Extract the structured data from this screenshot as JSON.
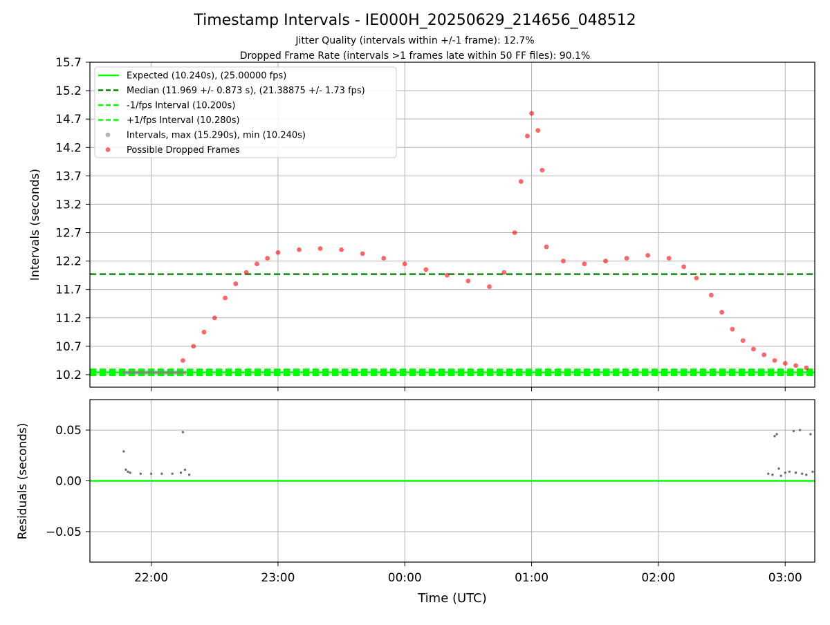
{
  "chart_data": {
    "type": "scatter",
    "title": "Timestamp Intervals - IE000H_20250629_214656_048512",
    "subtitle_1": "Jitter Quality (intervals within +/-1 frame): 12.7%",
    "subtitle_2": "Dropped Frame Rate (intervals >1 frames late within 50 FF files): 90.1%",
    "xlabel": "Time (UTC)",
    "x_range": [
      "21:31",
      "03:14"
    ],
    "x_ticks": [
      "22:00",
      "23:00",
      "00:00",
      "01:00",
      "02:00",
      "03:00"
    ],
    "grid": true,
    "legend_placement": "top-left",
    "top_panel": {
      "ylabel": "Intervals (seconds)",
      "ylim": [
        9.98,
        15.7
      ],
      "y_ticks": [
        "10.2",
        "10.7",
        "11.2",
        "11.7",
        "12.2",
        "12.7",
        "13.2",
        "13.7",
        "14.2",
        "14.7",
        "15.2",
        "15.7"
      ],
      "legend": [
        {
          "label": "Expected (10.240s), (25.00000 fps)",
          "style": "solid",
          "color": "#00ff00"
        },
        {
          "label": "Median (11.969 +/- 0.873 s), (21.38875 +/- 1.73 fps)",
          "style": "dashed",
          "color": "#008000"
        },
        {
          "label": "-1/fps Interval (10.200s)",
          "style": "dashed",
          "color": "#00ff00"
        },
        {
          "label": "+1/fps Interval (10.280s)",
          "style": "dashed",
          "color": "#00ff00"
        },
        {
          "label": "Intervals, max (15.290s), min (10.240s)",
          "style": "dot",
          "color": "#808080"
        },
        {
          "label": "Possible Dropped Frames",
          "style": "dot",
          "color": "#ff0000"
        }
      ],
      "expected": 10.24,
      "median": 11.969,
      "minus_one_fps": 10.2,
      "plus_one_fps": 10.28,
      "dropped_frames_trend": [
        {
          "t": "22:15",
          "v": 10.45
        },
        {
          "t": "22:20",
          "v": 10.7
        },
        {
          "t": "22:25",
          "v": 10.95
        },
        {
          "t": "22:30",
          "v": 11.2
        },
        {
          "t": "22:35",
          "v": 11.55
        },
        {
          "t": "22:40",
          "v": 11.8
        },
        {
          "t": "22:45",
          "v": 12.0
        },
        {
          "t": "22:50",
          "v": 12.15
        },
        {
          "t": "22:55",
          "v": 12.25
        },
        {
          "t": "23:00",
          "v": 12.35
        },
        {
          "t": "23:10",
          "v": 12.4
        },
        {
          "t": "23:20",
          "v": 12.42
        },
        {
          "t": "23:30",
          "v": 12.4
        },
        {
          "t": "23:40",
          "v": 12.33
        },
        {
          "t": "23:50",
          "v": 12.25
        },
        {
          "t": "00:00",
          "v": 12.15
        },
        {
          "t": "00:10",
          "v": 12.05
        },
        {
          "t": "00:20",
          "v": 11.95
        },
        {
          "t": "00:30",
          "v": 11.85
        },
        {
          "t": "00:40",
          "v": 11.75
        },
        {
          "t": "00:47",
          "v": 12.0
        },
        {
          "t": "00:52",
          "v": 12.7
        },
        {
          "t": "00:55",
          "v": 13.6
        },
        {
          "t": "00:58",
          "v": 14.4
        },
        {
          "t": "01:00",
          "v": 14.8
        },
        {
          "t": "01:03",
          "v": 14.5
        },
        {
          "t": "01:05",
          "v": 13.8
        },
        {
          "t": "01:07",
          "v": 12.45
        },
        {
          "t": "01:15",
          "v": 12.2
        },
        {
          "t": "01:25",
          "v": 12.15
        },
        {
          "t": "01:35",
          "v": 12.2
        },
        {
          "t": "01:45",
          "v": 12.25
        },
        {
          "t": "01:55",
          "v": 12.3
        },
        {
          "t": "02:05",
          "v": 12.25
        },
        {
          "t": "02:12",
          "v": 12.1
        },
        {
          "t": "02:18",
          "v": 11.9
        },
        {
          "t": "02:25",
          "v": 11.6
        },
        {
          "t": "02:30",
          "v": 11.3
        },
        {
          "t": "02:35",
          "v": 11.0
        },
        {
          "t": "02:40",
          "v": 10.8
        },
        {
          "t": "02:45",
          "v": 10.65
        },
        {
          "t": "02:50",
          "v": 10.55
        },
        {
          "t": "02:55",
          "v": 10.45
        },
        {
          "t": "03:00",
          "v": 10.4
        },
        {
          "t": "03:05",
          "v": 10.36
        },
        {
          "t": "03:10",
          "v": 10.32
        }
      ],
      "normal_intervals": {
        "from": "21:47",
        "to": "22:16",
        "value": 10.24
      }
    },
    "bottom_panel": {
      "ylabel": "Residuals (seconds)",
      "ylim": [
        -0.08,
        0.08
      ],
      "y_ticks": [
        "−0.05",
        "0.00",
        "0.05"
      ],
      "zero_line": 0.0,
      "residuals": [
        {
          "t": "21:47",
          "v": 0.029
        },
        {
          "t": "21:48",
          "v": 0.011
        },
        {
          "t": "21:49",
          "v": 0.009
        },
        {
          "t": "21:50",
          "v": 0.008
        },
        {
          "t": "21:55",
          "v": 0.007
        },
        {
          "t": "22:00",
          "v": 0.007
        },
        {
          "t": "22:05",
          "v": 0.007
        },
        {
          "t": "22:10",
          "v": 0.007
        },
        {
          "t": "22:14",
          "v": 0.008
        },
        {
          "t": "22:15",
          "v": 0.048
        },
        {
          "t": "22:16",
          "v": 0.011
        },
        {
          "t": "22:18",
          "v": 0.006
        },
        {
          "t": "02:52",
          "v": 0.007
        },
        {
          "t": "02:54",
          "v": 0.006
        },
        {
          "t": "02:55",
          "v": 0.044
        },
        {
          "t": "02:56",
          "v": 0.046
        },
        {
          "t": "02:57",
          "v": 0.012
        },
        {
          "t": "02:58",
          "v": 0.005
        },
        {
          "t": "03:00",
          "v": 0.008
        },
        {
          "t": "03:02",
          "v": 0.009
        },
        {
          "t": "03:04",
          "v": 0.049
        },
        {
          "t": "03:05",
          "v": 0.008
        },
        {
          "t": "03:07",
          "v": 0.05
        },
        {
          "t": "03:08",
          "v": 0.007
        },
        {
          "t": "03:10",
          "v": 0.006
        },
        {
          "t": "03:12",
          "v": 0.046
        },
        {
          "t": "03:13",
          "v": 0.009
        }
      ]
    }
  },
  "colors": {
    "expected": "#00ff00",
    "median": "#008000",
    "dropped": "#ff0000",
    "interval": "#808080",
    "grid": "#b0b0b0"
  }
}
